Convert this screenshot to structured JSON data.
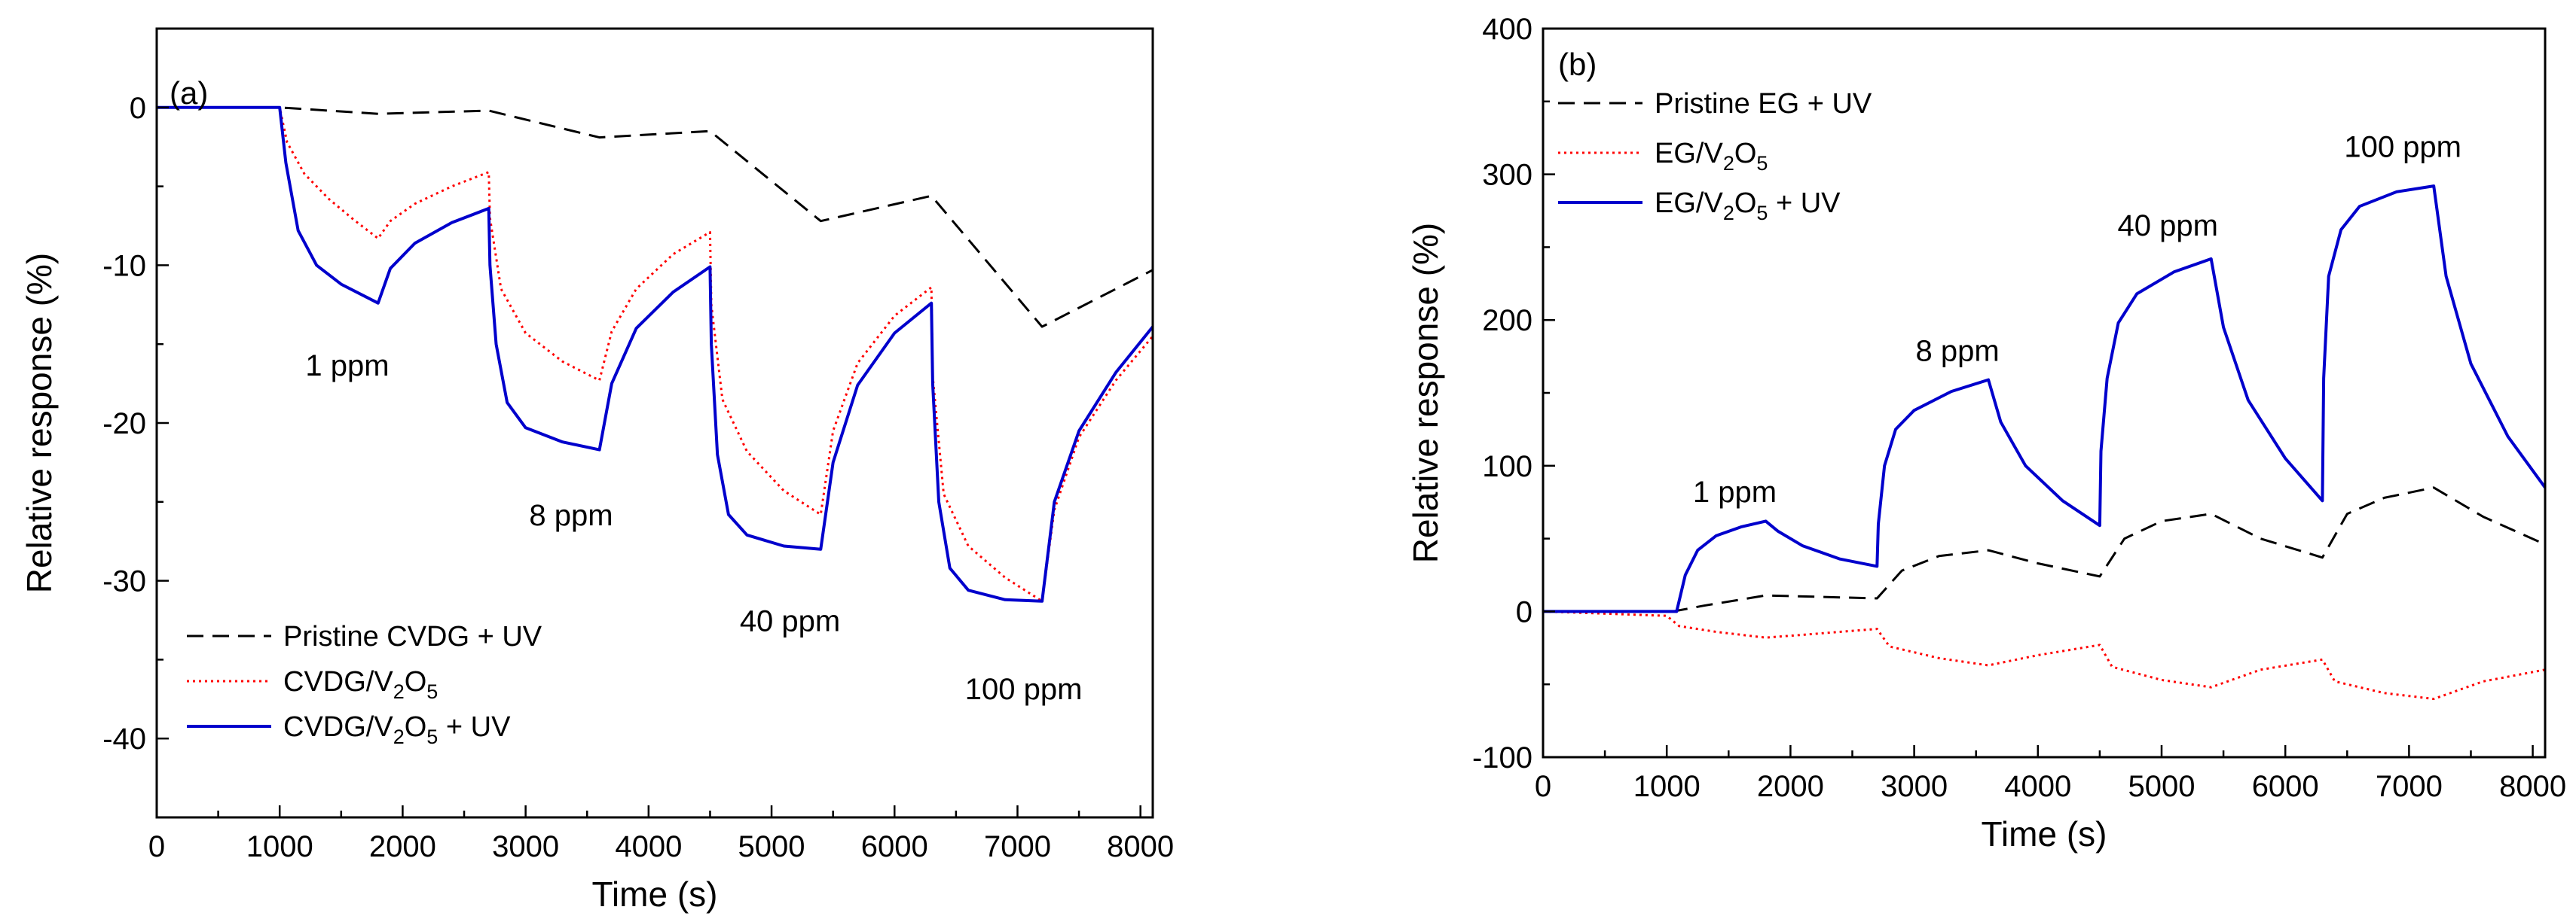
{
  "chart_data": [
    {
      "type": "line",
      "panel_label": "(a)",
      "xlabel": "Time (s)",
      "ylabel": "Relative response (%)",
      "xlim": [
        0,
        8100
      ],
      "ylim": [
        -45,
        5
      ],
      "xticks": [
        0,
        1000,
        2000,
        3000,
        4000,
        5000,
        6000,
        7000,
        8000
      ],
      "yticks": [
        0,
        -10,
        -20,
        -30,
        -40
      ],
      "legend_position": "bottom-left",
      "annotations": [
        {
          "text": "1 ppm",
          "x": 1550,
          "y": -17
        },
        {
          "text": "8 ppm",
          "x": 3370,
          "y": -26.5
        },
        {
          "text": "40 ppm",
          "x": 5150,
          "y": -33.2
        },
        {
          "text": "100 ppm",
          "x": 7050,
          "y": -37.5
        }
      ],
      "series": [
        {
          "name": [
            "Pristine CVDG + UV"
          ],
          "style": "dashed",
          "color": "#000000",
          "points": [
            [
              0,
              0
            ],
            [
              1000,
              0
            ],
            [
              1800,
              -0.4
            ],
            [
              2700,
              -0.2
            ],
            [
              3600,
              -1.9
            ],
            [
              4500,
              -1.5
            ],
            [
              5400,
              -7.2
            ],
            [
              6300,
              -5.6
            ],
            [
              7200,
              -13.9
            ],
            [
              8100,
              -10.3
            ]
          ]
        },
        {
          "name": [
            "CVDG/V",
            "2",
            "O",
            "5"
          ],
          "style": "dotted",
          "color": "#ff0000",
          "points": [
            [
              0,
              0
            ],
            [
              1000,
              0
            ],
            [
              1060,
              -2.2
            ],
            [
              1200,
              -4.2
            ],
            [
              1400,
              -5.8
            ],
            [
              1600,
              -7.1
            ],
            [
              1800,
              -8.3
            ],
            [
              1900,
              -7.2
            ],
            [
              2100,
              -6.1
            ],
            [
              2400,
              -5.0
            ],
            [
              2700,
              -4.1
            ],
            [
              2710,
              -7.0
            ],
            [
              2800,
              -11.5
            ],
            [
              3000,
              -14.3
            ],
            [
              3300,
              -16.1
            ],
            [
              3600,
              -17.3
            ],
            [
              3700,
              -14.2
            ],
            [
              3900,
              -11.5
            ],
            [
              4200,
              -9.3
            ],
            [
              4500,
              -7.9
            ],
            [
              4510,
              -12.5
            ],
            [
              4600,
              -18.5
            ],
            [
              4800,
              -21.8
            ],
            [
              5100,
              -24.3
            ],
            [
              5400,
              -25.8
            ],
            [
              5500,
              -20.5
            ],
            [
              5700,
              -16.2
            ],
            [
              6000,
              -13.2
            ],
            [
              6300,
              -11.4
            ],
            [
              6310,
              -17.0
            ],
            [
              6400,
              -24.5
            ],
            [
              6600,
              -27.8
            ],
            [
              6900,
              -29.8
            ],
            [
              7200,
              -31.3
            ],
            [
              7300,
              -25.5
            ],
            [
              7500,
              -20.9
            ],
            [
              7800,
              -17.3
            ],
            [
              8100,
              -14.5
            ]
          ]
        },
        {
          "name": [
            "CVDG/V",
            "2",
            "O",
            "5",
            " + UV"
          ],
          "style": "solid",
          "color": "#0000cc",
          "points": [
            [
              0,
              0
            ],
            [
              1000,
              0
            ],
            [
              1050,
              -3.5
            ],
            [
              1150,
              -7.8
            ],
            [
              1300,
              -10.0
            ],
            [
              1500,
              -11.2
            ],
            [
              1800,
              -12.4
            ],
            [
              1900,
              -10.2
            ],
            [
              2100,
              -8.6
            ],
            [
              2400,
              -7.3
            ],
            [
              2700,
              -6.4
            ],
            [
              2710,
              -10.0
            ],
            [
              2760,
              -15.0
            ],
            [
              2850,
              -18.7
            ],
            [
              3000,
              -20.3
            ],
            [
              3300,
              -21.2
            ],
            [
              3600,
              -21.7
            ],
            [
              3700,
              -17.5
            ],
            [
              3900,
              -14.0
            ],
            [
              4200,
              -11.7
            ],
            [
              4500,
              -10.1
            ],
            [
              4510,
              -15.0
            ],
            [
              4560,
              -22.0
            ],
            [
              4650,
              -25.8
            ],
            [
              4800,
              -27.1
            ],
            [
              5100,
              -27.8
            ],
            [
              5400,
              -28.0
            ],
            [
              5500,
              -22.5
            ],
            [
              5700,
              -17.6
            ],
            [
              6000,
              -14.3
            ],
            [
              6300,
              -12.4
            ],
            [
              6310,
              -17.5
            ],
            [
              6360,
              -25.0
            ],
            [
              6450,
              -29.2
            ],
            [
              6600,
              -30.6
            ],
            [
              6900,
              -31.2
            ],
            [
              7200,
              -31.3
            ],
            [
              7300,
              -25.0
            ],
            [
              7500,
              -20.5
            ],
            [
              7800,
              -16.8
            ],
            [
              8100,
              -13.9
            ]
          ]
        }
      ]
    },
    {
      "type": "line",
      "panel_label": "(b)",
      "xlabel": "Time (s)",
      "ylabel": "Relative response (%)",
      "xlim": [
        0,
        8100
      ],
      "ylim": [
        -100,
        400
      ],
      "xticks": [
        0,
        1000,
        2000,
        3000,
        4000,
        5000,
        6000,
        7000,
        8000
      ],
      "yticks": [
        -100,
        0,
        100,
        200,
        300,
        400
      ],
      "legend_position": "top-left",
      "annotations": [
        {
          "text": "1 ppm",
          "x": 1550,
          "y": 75
        },
        {
          "text": "8 ppm",
          "x": 3350,
          "y": 172
        },
        {
          "text": "40 ppm",
          "x": 5050,
          "y": 258
        },
        {
          "text": "100 ppm",
          "x": 6950,
          "y": 312
        }
      ],
      "series": [
        {
          "name": [
            "Pristine EG + UV"
          ],
          "style": "dashed",
          "color": "#000000",
          "points": [
            [
              0,
              0
            ],
            [
              1050,
              0
            ],
            [
              1300,
              4
            ],
            [
              1800,
              11
            ],
            [
              2700,
              9
            ],
            [
              2900,
              28
            ],
            [
              3200,
              38
            ],
            [
              3600,
              42
            ],
            [
              4000,
              33
            ],
            [
              4500,
              24
            ],
            [
              4700,
              50
            ],
            [
              5000,
              62
            ],
            [
              5400,
              67
            ],
            [
              5800,
              50
            ],
            [
              6300,
              37
            ],
            [
              6500,
              67
            ],
            [
              6800,
              78
            ],
            [
              7200,
              85
            ],
            [
              7600,
              65
            ],
            [
              8100,
              46
            ]
          ]
        },
        {
          "name": [
            "EG/V",
            "2",
            "O",
            "5"
          ],
          "style": "dotted",
          "color": "#ff0000",
          "points": [
            [
              0,
              0
            ],
            [
              1000,
              -3
            ],
            [
              1100,
              -10
            ],
            [
              1400,
              -14
            ],
            [
              1800,
              -18
            ],
            [
              2100,
              -16
            ],
            [
              2700,
              -12
            ],
            [
              2800,
              -24
            ],
            [
              3200,
              -32
            ],
            [
              3600,
              -37
            ],
            [
              4000,
              -30
            ],
            [
              4500,
              -23
            ],
            [
              4600,
              -38
            ],
            [
              5000,
              -47
            ],
            [
              5400,
              -52
            ],
            [
              5800,
              -40
            ],
            [
              6300,
              -33
            ],
            [
              6400,
              -48
            ],
            [
              6800,
              -56
            ],
            [
              7200,
              -60
            ],
            [
              7600,
              -48
            ],
            [
              8100,
              -40
            ]
          ]
        },
        {
          "name": [
            "EG/V",
            "2",
            "O",
            "5",
            " + UV"
          ],
          "style": "solid",
          "color": "#0000cc",
          "points": [
            [
              0,
              0
            ],
            [
              1080,
              0
            ],
            [
              1150,
              25
            ],
            [
              1250,
              42
            ],
            [
              1400,
              52
            ],
            [
              1600,
              58
            ],
            [
              1800,
              62
            ],
            [
              1900,
              55
            ],
            [
              2100,
              45
            ],
            [
              2400,
              36
            ],
            [
              2700,
              31
            ],
            [
              2710,
              60
            ],
            [
              2760,
              100
            ],
            [
              2850,
              125
            ],
            [
              3000,
              138
            ],
            [
              3300,
              151
            ],
            [
              3600,
              159
            ],
            [
              3700,
              130
            ],
            [
              3900,
              100
            ],
            [
              4200,
              76
            ],
            [
              4500,
              59
            ],
            [
              4510,
              110
            ],
            [
              4560,
              160
            ],
            [
              4650,
              198
            ],
            [
              4800,
              218
            ],
            [
              5100,
              233
            ],
            [
              5400,
              242
            ],
            [
              5500,
              195
            ],
            [
              5700,
              145
            ],
            [
              6000,
              105
            ],
            [
              6300,
              76
            ],
            [
              6310,
              160
            ],
            [
              6350,
              230
            ],
            [
              6450,
              262
            ],
            [
              6600,
              278
            ],
            [
              6900,
              288
            ],
            [
              7200,
              292
            ],
            [
              7300,
              230
            ],
            [
              7500,
              170
            ],
            [
              7800,
              120
            ],
            [
              8100,
              85
            ]
          ]
        }
      ]
    }
  ]
}
